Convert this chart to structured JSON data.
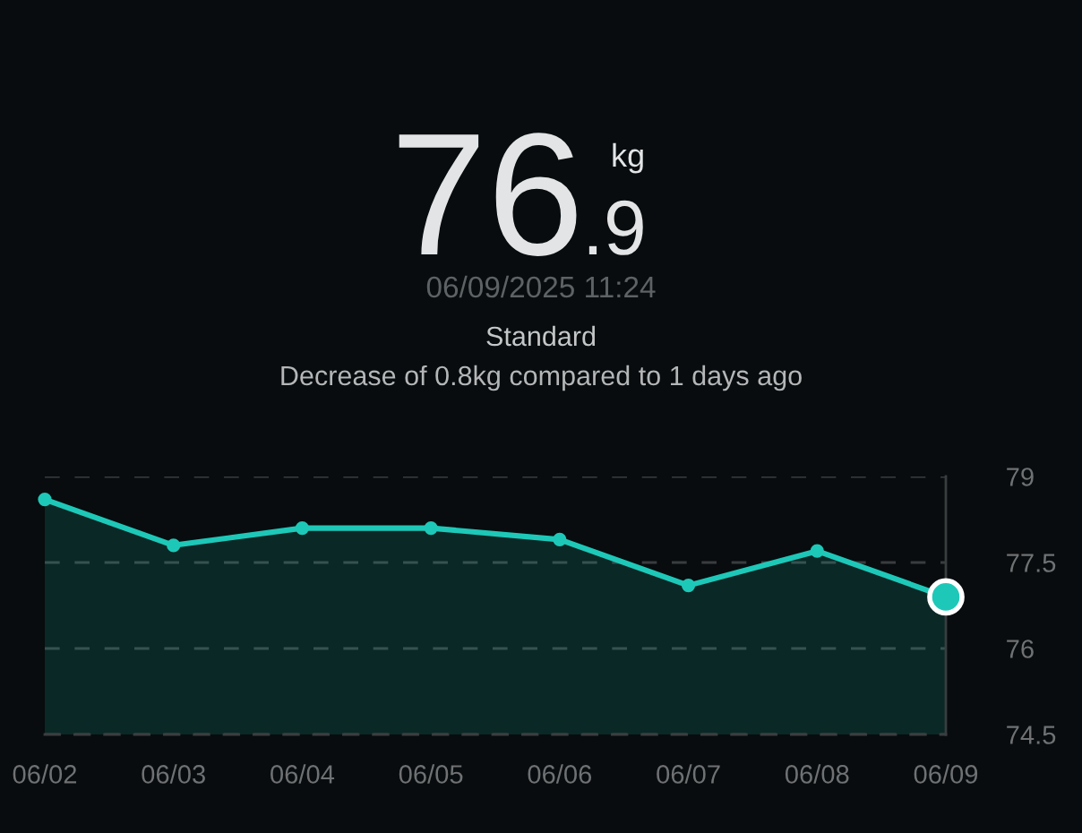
{
  "chart_data": {
    "type": "area",
    "title": "76.9 kg",
    "annotations": [
      "06/09/2025 11:24",
      "Standard",
      "Decrease of 0.8kg compared to 1 days ago"
    ],
    "categories": [
      "06/02",
      "06/03",
      "06/04",
      "06/05",
      "06/06",
      "06/07",
      "06/08",
      "06/09"
    ],
    "series": [
      {
        "color": "#1ec8b8",
        "values": [
          78.6,
          77.8,
          78.1,
          78.1,
          77.9,
          77.1,
          77.7,
          76.9
        ]
      },
      {
        "type": "scatter",
        "x": [
          "06/09"
        ],
        "color": "#1ec8b8",
        "values": [
          76.9
        ]
      }
    ],
    "ylim": [
      74.5,
      79
    ],
    "yticks": [
      74.5,
      76,
      77.5,
      79
    ],
    "grid": "y",
    "marker": "circle",
    "line_style": "solid"
  }
}
